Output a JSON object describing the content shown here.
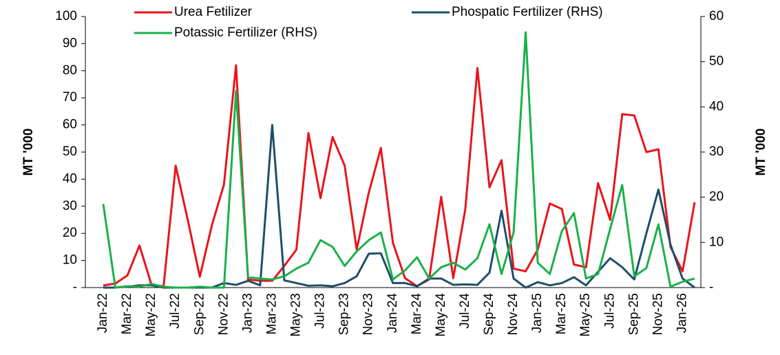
{
  "chart_data": {
    "type": "line",
    "categories": [
      "Jan-22",
      null,
      "Mar-22",
      null,
      "May-22",
      null,
      "Jul-22",
      null,
      "Sep-22",
      null,
      "Nov-22",
      null,
      "Jan-23",
      null,
      "Mar-23",
      null,
      "May-23",
      null,
      "Jul-23",
      null,
      "Sep-23",
      null,
      "Nov-23",
      null,
      "Jan-24",
      null,
      "Mar-24",
      null,
      "May-24",
      null,
      "Jul-24",
      null,
      "Sep-24",
      null,
      "Nov-24",
      null,
      "Jan-25",
      null,
      "Mar-25",
      null,
      "May-25",
      null,
      "Jul-25",
      null,
      "Sep-25",
      null,
      "Nov-25",
      null,
      "Jan-26",
      null
    ],
    "series": [
      {
        "name": "Urea Fetilizer",
        "color": "#e8141b",
        "values": [
          0.8,
          1.5,
          4.5,
          15.5,
          1,
          0.5,
          45,
          25,
          4,
          23,
          38,
          82,
          3,
          2.5,
          2.5,
          8,
          14,
          57,
          33,
          55.5,
          45,
          14,
          35,
          51.5,
          16.5,
          3.5,
          0.5,
          3,
          33.5,
          3.5,
          29,
          81,
          37,
          47,
          7,
          6,
          14,
          31,
          29,
          8.5,
          7.5,
          38.5,
          25,
          64,
          63.5,
          50,
          51,
          15,
          6,
          31.5
        ]
      },
      {
        "name": "Phospatic Fertilizer (RHS)",
        "color": "#1f4e69",
        "axis": "y2",
        "values": [
          0,
          0,
          0.2,
          0.5,
          0.5,
          0,
          0,
          0,
          0,
          0,
          1,
          0.6,
          1.5,
          0.5,
          36,
          1.6,
          1,
          0.4,
          0.5,
          0.3,
          1,
          2.5,
          7.5,
          7.6,
          1,
          1,
          0.3,
          2,
          2,
          0.6,
          0.7,
          0.6,
          3.3,
          17,
          2,
          0,
          1.2,
          0.5,
          1,
          2.3,
          0.5,
          3.5,
          6.5,
          4.5,
          1.8,
          12,
          21.7,
          9.5,
          2,
          0
        ]
      },
      {
        "name": "Potassic Fertilizer (RHS)",
        "color": "#1bb04a",
        "axis": "y2",
        "values": [
          18.5,
          0,
          0.3,
          0.2,
          0.8,
          0.2,
          0,
          0,
          0.2,
          0,
          0,
          43.5,
          2.3,
          2,
          1.8,
          2.5,
          4.2,
          5.5,
          10.5,
          9,
          4.8,
          8,
          10.5,
          12.2,
          1.8,
          3.8,
          6.7,
          2,
          4.5,
          5.5,
          4,
          6.5,
          14,
          3,
          12.2,
          56.5,
          5.5,
          3,
          12.5,
          16.5,
          2,
          3,
          13,
          22.7,
          2.5,
          4.3,
          14,
          0.2,
          1.3,
          2
        ]
      }
    ],
    "ylabel": "MT '000",
    "y2label": "MT '000",
    "ylim": [
      0,
      100
    ],
    "yticks": [
      {
        "value": 0,
        "label": "-"
      },
      10,
      20,
      30,
      40,
      50,
      60,
      70,
      80,
      90,
      100
    ],
    "y2lim": [
      0,
      60
    ],
    "y2ticks": [
      {
        "value": 0,
        "label": "-"
      },
      10,
      20,
      30,
      40,
      50,
      60
    ]
  }
}
